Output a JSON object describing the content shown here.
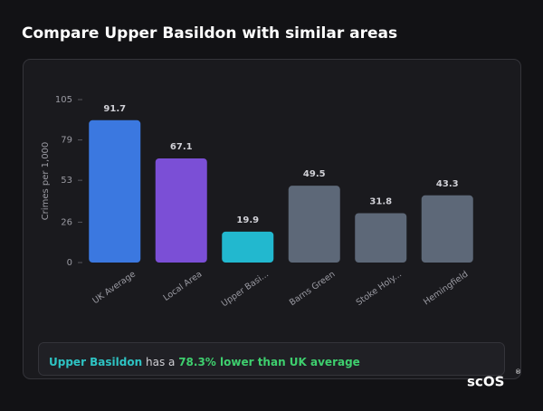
{
  "header": {
    "title": "Compare Upper Basildon with similar areas"
  },
  "chart_data": {
    "type": "bar",
    "y_label": "Crimes per 1,000",
    "categories": [
      "UK Average",
      "Local Area",
      "Upper Basi...",
      "Barns Green",
      "Stoke Holy...",
      "Hemingfield"
    ],
    "values": [
      91.7,
      67.1,
      19.9,
      49.5,
      31.8,
      43.3
    ],
    "colors": [
      "#3b78e0",
      "#7b4fd6",
      "#22b8cf",
      "#5d6878",
      "#5d6878",
      "#5d6878"
    ],
    "ylim": [
      0,
      105
    ],
    "yticks": [
      0,
      26,
      53,
      79,
      105
    ],
    "grid": false
  },
  "summary": {
    "area": "Upper Basildon",
    "text": "has a",
    "highlight": "78.3% lower than UK average"
  },
  "logo": {
    "text": "scOS",
    "mark": "®"
  }
}
